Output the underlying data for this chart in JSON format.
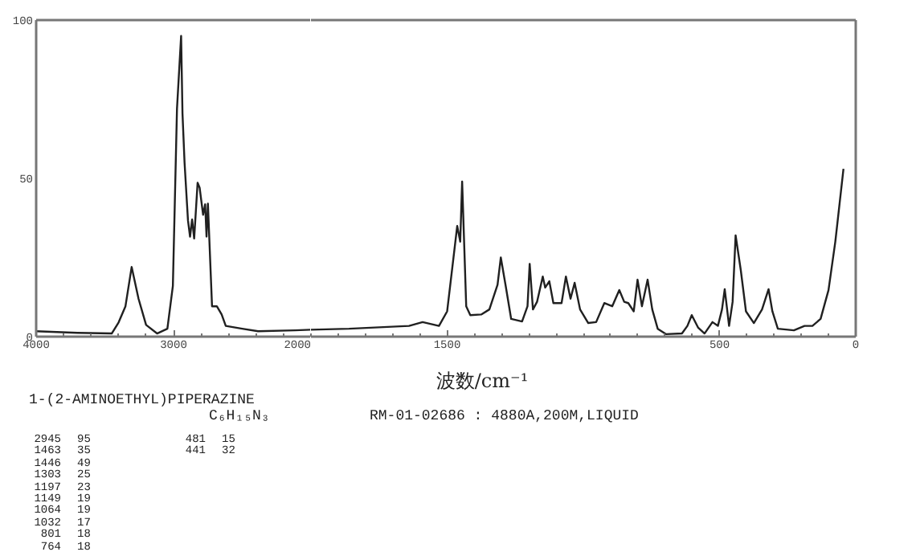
{
  "chart_data": [
    {
      "type": "line",
      "x": [
        4000,
        3700,
        3450,
        3400,
        3350,
        3305,
        3255,
        3200,
        3120,
        3045,
        3005,
        2975,
        2945,
        2935,
        2920,
        2895,
        2880,
        2865,
        2850,
        2825,
        2810,
        2785,
        2770,
        2760,
        2750,
        2720,
        2685,
        2650,
        2620,
        2500,
        2385,
        2115,
        2000
      ],
      "series": [
        {
          "color": "#202020",
          "values": [
            1.7,
            1.2,
            1,
            4.5,
            9.6,
            22,
            12,
            3.7,
            1,
            2.5,
            16,
            72,
            95,
            70.5,
            55,
            36.7,
            31.6,
            37,
            31,
            48.6,
            47,
            38.5,
            41.8,
            31.6,
            42,
            9.6,
            9.6,
            7,
            3.4,
            2.5,
            1.7,
            2,
            2.2
          ]
        }
      ],
      "xlim": [
        4000,
        2000
      ],
      "xticks": [
        4000,
        3000,
        2000
      ],
      "ylim": [
        0,
        100
      ],
      "yticks": [
        0,
        50,
        100
      ],
      "annotations": [
        "1-(2-AMINOETHYL)PIPERAZINE",
        "C₆H₁₅N₃",
        "RM-01-02686 : 4880A,200M,LIQUID",
        "2945 95",
        "1463 35",
        "1446 49",
        "1303 25",
        "1197 23",
        "1149 19",
        "1064 19",
        "1032 17",
        "801 18",
        "764 18",
        "481 15",
        "441 32"
      ]
    },
    {
      "type": "line",
      "xlabel": "波数/cm⁻¹",
      "x": [
        2000,
        1860,
        1640,
        1590,
        1530,
        1500,
        1463,
        1452,
        1445,
        1430,
        1415,
        1375,
        1345,
        1315,
        1303,
        1285,
        1265,
        1225,
        1205,
        1197,
        1185,
        1170,
        1149,
        1140,
        1125,
        1110,
        1080,
        1064,
        1047,
        1032,
        1012,
        982,
        953,
        923,
        894,
        868,
        850,
        835,
        815,
        801,
        785,
        764,
        747,
        727,
        697,
        638,
        618,
        602,
        579,
        555,
        526,
        506,
        491,
        481,
        465,
        452,
        441,
        422,
        403,
        374,
        344,
        320,
        306,
        286,
        227,
        188,
        159,
        129,
        100,
        75,
        45
      ],
      "series": [
        {
          "color": "#202020",
          "values": [
            2.2,
            2.5,
            3.4,
            4.6,
            3.4,
            8,
            35,
            30,
            49,
            9.6,
            6.8,
            7,
            8.6,
            16.4,
            25,
            16,
            5.6,
            4.8,
            9.6,
            23,
            8.6,
            11,
            19,
            15.5,
            17.5,
            10.6,
            10.6,
            19,
            12,
            17,
            8.6,
            4.3,
            4.6,
            10.6,
            9.6,
            14.7,
            11,
            10.6,
            8,
            18,
            9.6,
            18,
            8.6,
            2.5,
            0.8,
            1,
            3.4,
            6.8,
            2.9,
            1,
            4.6,
            3.4,
            8.6,
            15,
            3.4,
            11,
            32,
            21,
            8,
            4.3,
            8.6,
            15,
            8,
            2.5,
            2,
            3.4,
            3.4,
            5.6,
            14.7,
            30,
            53
          ]
        }
      ],
      "xlim": [
        2000,
        0
      ],
      "xticks": [
        1500,
        500,
        0
      ],
      "ylim": [
        0,
        100
      ],
      "tick_labels": "x"
    }
  ]
}
